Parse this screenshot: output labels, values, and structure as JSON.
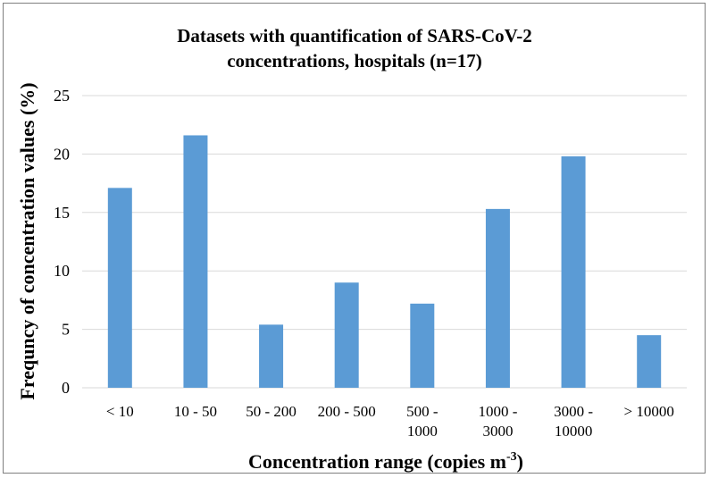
{
  "chart_data": {
    "type": "bar",
    "title": [
      "Datasets with quantification of SARS-CoV-2",
      "concentrations, hospitals (n=17)"
    ],
    "xlabel": "Concentration range (copies m",
    "xlabel_superscript": "-3",
    "xlabel_suffix": ")",
    "ylabel": "Frequncy of concentration values (%)",
    "categories": [
      [
        "< 10"
      ],
      [
        "10 - 50"
      ],
      [
        "50 - 200"
      ],
      [
        "200 - 500"
      ],
      [
        "500 -",
        "1000"
      ],
      [
        "1000 -",
        "3000"
      ],
      [
        "3000 -",
        "10000"
      ],
      [
        "> 10000"
      ]
    ],
    "values": [
      17.1,
      21.6,
      5.4,
      9.0,
      7.2,
      15.3,
      19.8,
      4.5
    ],
    "ylim": [
      0,
      25
    ],
    "yticks": [
      "0",
      "5",
      "10",
      "15",
      "20",
      "25"
    ],
    "grid": true,
    "bar_color": "#5b9bd5",
    "gridline_color": "#d9d9d9"
  }
}
